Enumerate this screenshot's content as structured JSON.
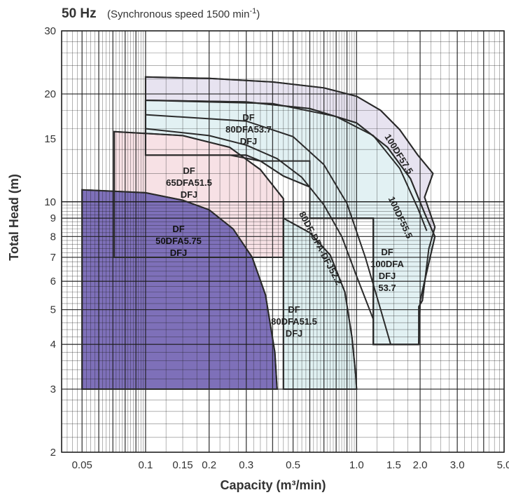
{
  "header": {
    "title": "50 Hz",
    "subtitle": "(Synchronous speed  1500 min",
    "subtitle_sup": "-1",
    "subtitle_end": ")"
  },
  "chart_data": {
    "type": "area",
    "xscale": "log",
    "yscale": "log",
    "xlim": [
      0.04,
      5.0
    ],
    "ylim": [
      2,
      30
    ],
    "xlabel": "Capacity (m³/min)",
    "ylabel": "Total Head (m)",
    "x_ticks": [
      {
        "value": 0.05,
        "label": "0.05"
      },
      {
        "value": 0.1,
        "label": "0.1"
      },
      {
        "value": 0.15,
        "label": "0.15"
      },
      {
        "value": 0.2,
        "label": "0.2"
      },
      {
        "value": 0.3,
        "label": "0.3"
      },
      {
        "value": 0.5,
        "label": "0.5"
      },
      {
        "value": 1.0,
        "label": "1.0"
      },
      {
        "value": 1.5,
        "label": "1.5"
      },
      {
        "value": 2.0,
        "label": "2.0"
      },
      {
        "value": 3.0,
        "label": "3.0"
      },
      {
        "value": 5.0,
        "label": "5.0"
      }
    ],
    "y_ticks": [
      {
        "value": 2,
        "label": "2"
      },
      {
        "value": 3,
        "label": "3"
      },
      {
        "value": 4,
        "label": "4"
      },
      {
        "value": 5,
        "label": "5"
      },
      {
        "value": 6,
        "label": "6"
      },
      {
        "value": 7,
        "label": "7"
      },
      {
        "value": 8,
        "label": "8"
      },
      {
        "value": 9,
        "label": "9"
      },
      {
        "value": 10,
        "label": "10"
      },
      {
        "value": 15,
        "label": "15"
      },
      {
        "value": 20,
        "label": "20"
      },
      {
        "value": 30,
        "label": "30"
      }
    ],
    "grid": true,
    "regions": [
      {
        "lines": [
          "DF",
          "100DFA",
          "DFJ",
          "53.7"
        ],
        "curve_label": "100DF57.5",
        "fill": "#e7e3f0",
        "points": [
          [
            0.1,
            22.3
          ],
          [
            0.2,
            22.1
          ],
          [
            0.4,
            21.6
          ],
          [
            0.7,
            20.8
          ],
          [
            1.0,
            19.7
          ],
          [
            1.3,
            18.0
          ],
          [
            1.6,
            15.9
          ],
          [
            1.95,
            13.5
          ],
          [
            2.3,
            12.0
          ],
          [
            2.1,
            10.3
          ],
          [
            2.35,
            8.5
          ],
          [
            2.2,
            7.4
          ],
          [
            2.05,
            5.3
          ],
          [
            1.97,
            5.1
          ],
          [
            1.97,
            4.0
          ],
          [
            1.2,
            4.0
          ],
          [
            1.2,
            5.3
          ],
          [
            1.2,
            9.0
          ],
          [
            0.6,
            9.0
          ],
          [
            0.6,
            11.0
          ],
          [
            0.6,
            13.0
          ],
          [
            0.35,
            13.0
          ],
          [
            0.25,
            13.5
          ],
          [
            0.1,
            13.5
          ]
        ]
      },
      {
        "lines": [
          "DF",
          "80DFA53.7",
          "DFJ"
        ],
        "curve_label": "100DF55.5",
        "fill": "#e2f1f3",
        "points": [
          [
            0.1,
            19.2
          ],
          [
            0.3,
            19.0
          ],
          [
            0.6,
            18.2
          ],
          [
            1.0,
            16.6
          ],
          [
            1.4,
            14.2
          ],
          [
            1.8,
            11.6
          ],
          [
            2.1,
            9.3
          ],
          [
            2.35,
            8.0
          ],
          [
            2.0,
            5.3
          ],
          [
            1.97,
            4.0
          ],
          [
            1.2,
            4.0
          ],
          [
            1.2,
            9.0
          ],
          [
            0.6,
            9.0
          ],
          [
            0.6,
            11.0
          ],
          [
            0.45,
            11.8
          ],
          [
            0.35,
            13.0
          ],
          [
            0.3,
            13.5
          ],
          [
            0.1,
            13.5
          ],
          [
            0.1,
            16.0
          ]
        ]
      },
      {
        "lines": [
          "DF",
          "65DFA51.5",
          "DFJ"
        ],
        "curve_label": "",
        "fill": "#f7e1e5",
        "points": [
          [
            0.071,
            15.7
          ],
          [
            0.15,
            15.3
          ],
          [
            0.25,
            14.2
          ],
          [
            0.35,
            12.3
          ],
          [
            0.45,
            10.2
          ],
          [
            0.45,
            7.0
          ],
          [
            0.071,
            7.0
          ]
        ]
      },
      {
        "lines": [
          "DF",
          "80DFA51.5",
          "DFJ"
        ],
        "curve_label": "80DF-DFA-DFJ52.2",
        "fill": "#dff0f1",
        "points": [
          [
            0.45,
            9.0
          ],
          [
            0.6,
            8.2
          ],
          [
            0.75,
            7.1
          ],
          [
            0.88,
            5.6
          ],
          [
            0.95,
            4.2
          ],
          [
            0.99,
            3.3
          ],
          [
            1.0,
            3.0
          ],
          [
            0.45,
            3.0
          ]
        ]
      },
      {
        "lines": [
          "DF",
          "50DFA5.75",
          "DFJ"
        ],
        "curve_label": "",
        "fill": "#7e70b9",
        "points": [
          [
            0.05,
            10.8
          ],
          [
            0.1,
            10.6
          ],
          [
            0.15,
            10.1
          ],
          [
            0.2,
            9.5
          ],
          [
            0.26,
            8.4
          ],
          [
            0.32,
            7.0
          ],
          [
            0.37,
            5.5
          ],
          [
            0.41,
            3.8
          ],
          [
            0.42,
            3.0
          ],
          [
            0.05,
            3.0
          ]
        ]
      }
    ],
    "curves": [
      {
        "name": "80DFA53.7",
        "points": [
          [
            0.1,
            16.0
          ],
          [
            0.2,
            15.3
          ],
          [
            0.3,
            14.4
          ],
          [
            0.42,
            13.2
          ],
          [
            0.55,
            11.7
          ],
          [
            0.7,
            9.8
          ],
          [
            0.85,
            8.0
          ],
          [
            1.0,
            6.2
          ],
          [
            1.2,
            4.7
          ]
        ]
      },
      {
        "name": "80DF-DFA-DFJ52.2",
        "points": [
          [
            0.1,
            17.5
          ],
          [
            0.3,
            16.8
          ],
          [
            0.5,
            15.2
          ],
          [
            0.7,
            12.7
          ],
          [
            0.9,
            9.9
          ],
          [
            1.1,
            7.0
          ],
          [
            1.3,
            5.0
          ],
          [
            1.45,
            4.0
          ]
        ]
      },
      {
        "name": "100DF55.5",
        "points": [
          [
            0.1,
            19.2
          ],
          [
            0.4,
            18.8
          ],
          [
            0.8,
            17.3
          ],
          [
            1.2,
            15.3
          ],
          [
            1.6,
            12.4
          ],
          [
            1.95,
            9.6
          ],
          [
            2.15,
            8.3
          ]
        ]
      }
    ]
  }
}
